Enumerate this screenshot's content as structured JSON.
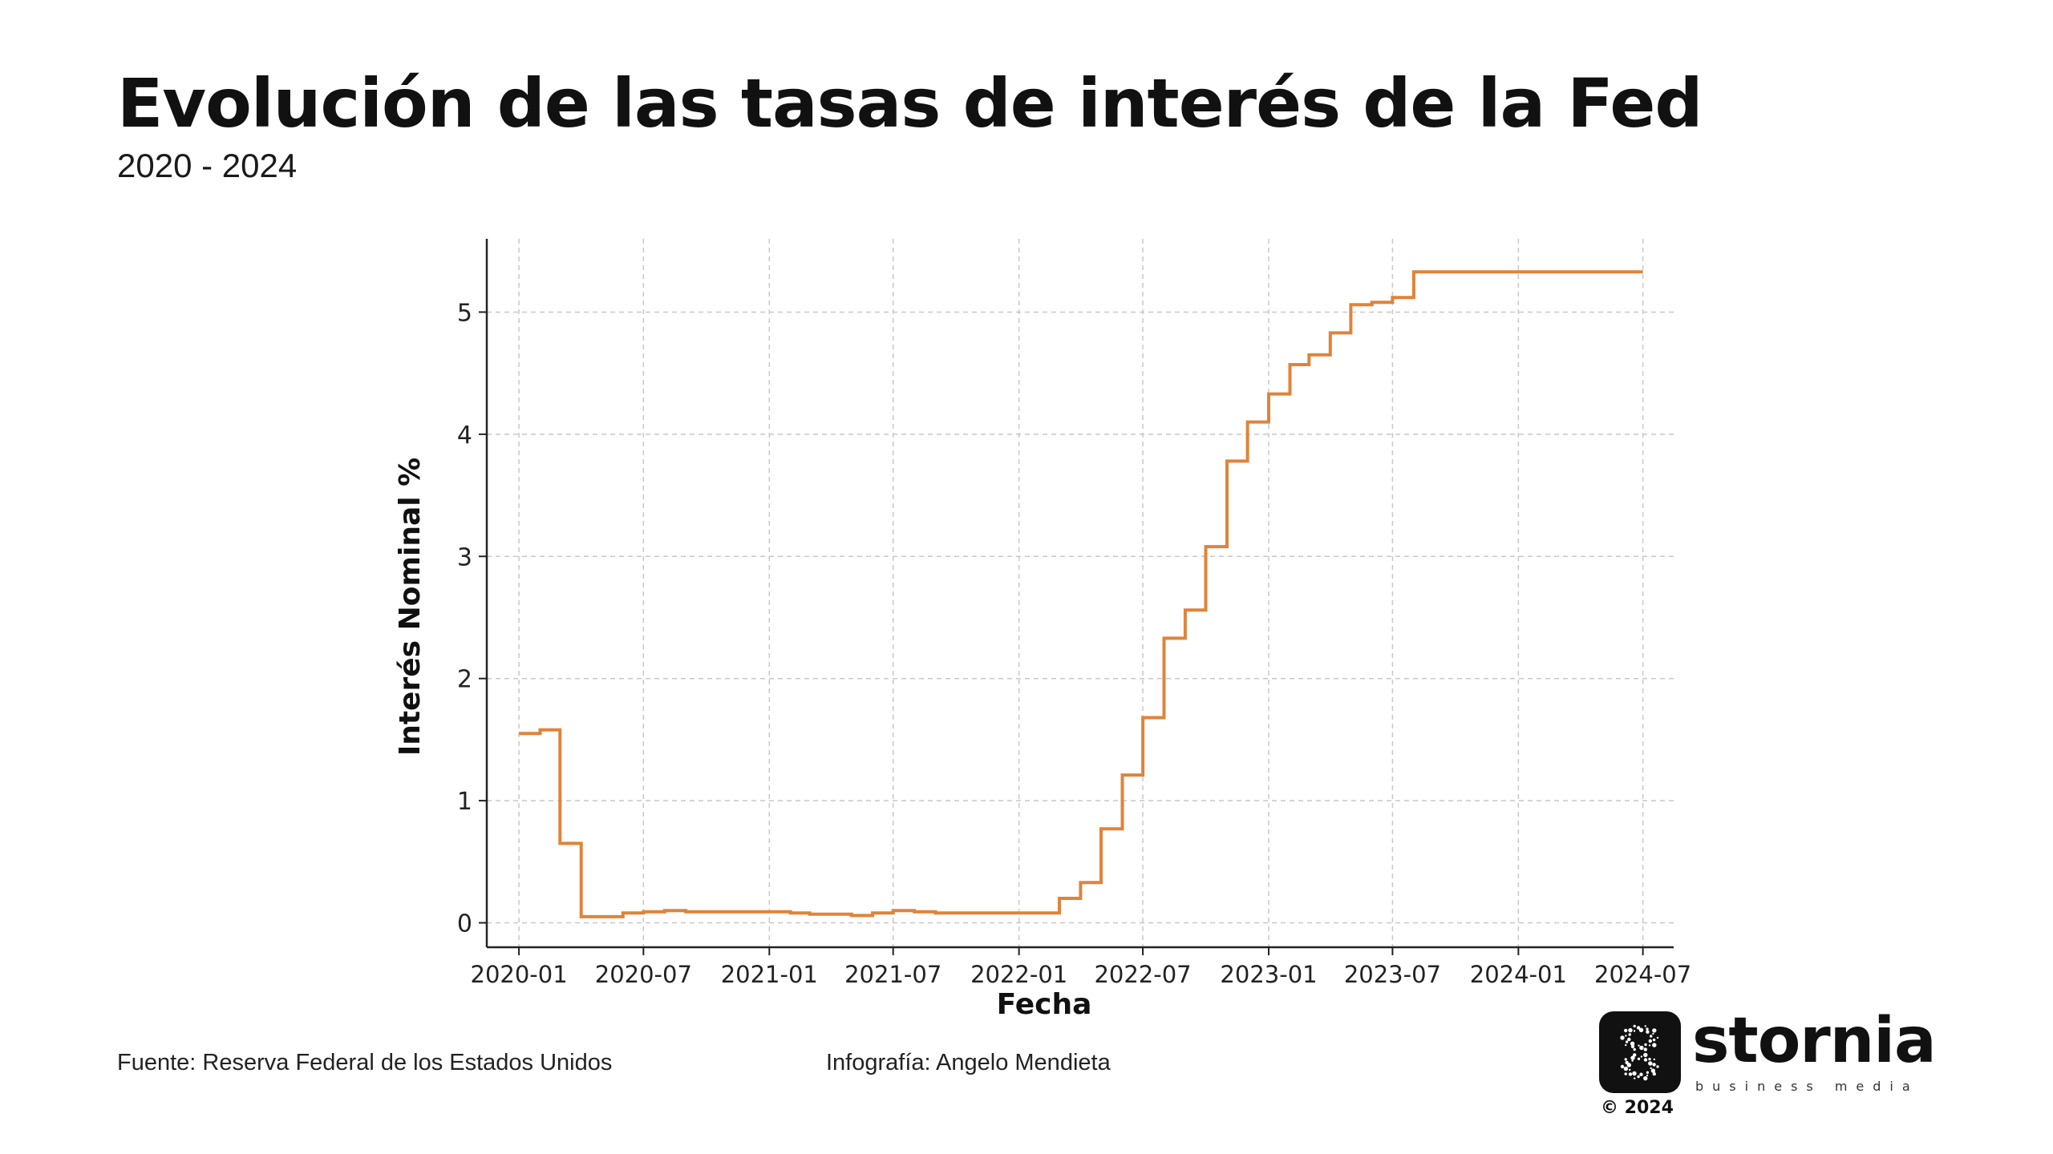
{
  "header": {
    "title": "Evolución de las tasas de interés de la Fed",
    "subtitle": "2020 - 2024"
  },
  "footer": {
    "source": "Fuente: Reserva Federal de los Estados Unidos",
    "credit": "Infografía: Angelo Mendieta"
  },
  "logo": {
    "wordmark": "stornia",
    "tagline": "business media",
    "copyright": "© 2024"
  },
  "colors": {
    "line": "#E0833A",
    "grid": "#c8c8c8",
    "axis": "#222222",
    "text": "#111111"
  },
  "chart_data": {
    "type": "line",
    "step": true,
    "title": "",
    "xlabel": "Fecha",
    "ylabel": "Interés Nominal %",
    "x_ticks": [
      "2020-01",
      "2020-07",
      "2021-01",
      "2021-07",
      "2022-01",
      "2022-07",
      "2023-01",
      "2023-07",
      "2024-01",
      "2024-07"
    ],
    "y_ticks": [
      0,
      1,
      2,
      3,
      4,
      5
    ],
    "xlim": [
      "2019-11-15",
      "2024-08-15"
    ],
    "ylim": [
      -0.2,
      5.6
    ],
    "grid": true,
    "legend": false,
    "series": [
      {
        "x": [
          "2020-01",
          "2020-02",
          "2020-03",
          "2020-04",
          "2020-05",
          "2020-06",
          "2020-07",
          "2020-08",
          "2020-09",
          "2020-10",
          "2020-11",
          "2020-12",
          "2021-01",
          "2021-02",
          "2021-03",
          "2021-04",
          "2021-05",
          "2021-06",
          "2021-07",
          "2021-08",
          "2021-09",
          "2021-10",
          "2021-11",
          "2021-12",
          "2022-01",
          "2022-02",
          "2022-03",
          "2022-04",
          "2022-05",
          "2022-06",
          "2022-07",
          "2022-08",
          "2022-09",
          "2022-10",
          "2022-11",
          "2022-12",
          "2023-01",
          "2023-02",
          "2023-03",
          "2023-04",
          "2023-05",
          "2023-06",
          "2023-07",
          "2023-08",
          "2023-09",
          "2023-10",
          "2023-11",
          "2023-12",
          "2024-01",
          "2024-02",
          "2024-03",
          "2024-04",
          "2024-05",
          "2024-06",
          "2024-07"
        ],
        "values": [
          1.55,
          1.58,
          0.65,
          0.05,
          0.05,
          0.08,
          0.09,
          0.1,
          0.09,
          0.09,
          0.09,
          0.09,
          0.09,
          0.08,
          0.07,
          0.07,
          0.06,
          0.08,
          0.1,
          0.09,
          0.08,
          0.08,
          0.08,
          0.08,
          0.08,
          0.08,
          0.2,
          0.33,
          0.77,
          1.21,
          1.68,
          2.33,
          2.56,
          3.08,
          3.78,
          4.1,
          4.33,
          4.57,
          4.65,
          4.83,
          5.06,
          5.08,
          5.12,
          5.33,
          5.33,
          5.33,
          5.33,
          5.33,
          5.33,
          5.33,
          5.33,
          5.33,
          5.33,
          5.33,
          5.33
        ]
      }
    ]
  }
}
